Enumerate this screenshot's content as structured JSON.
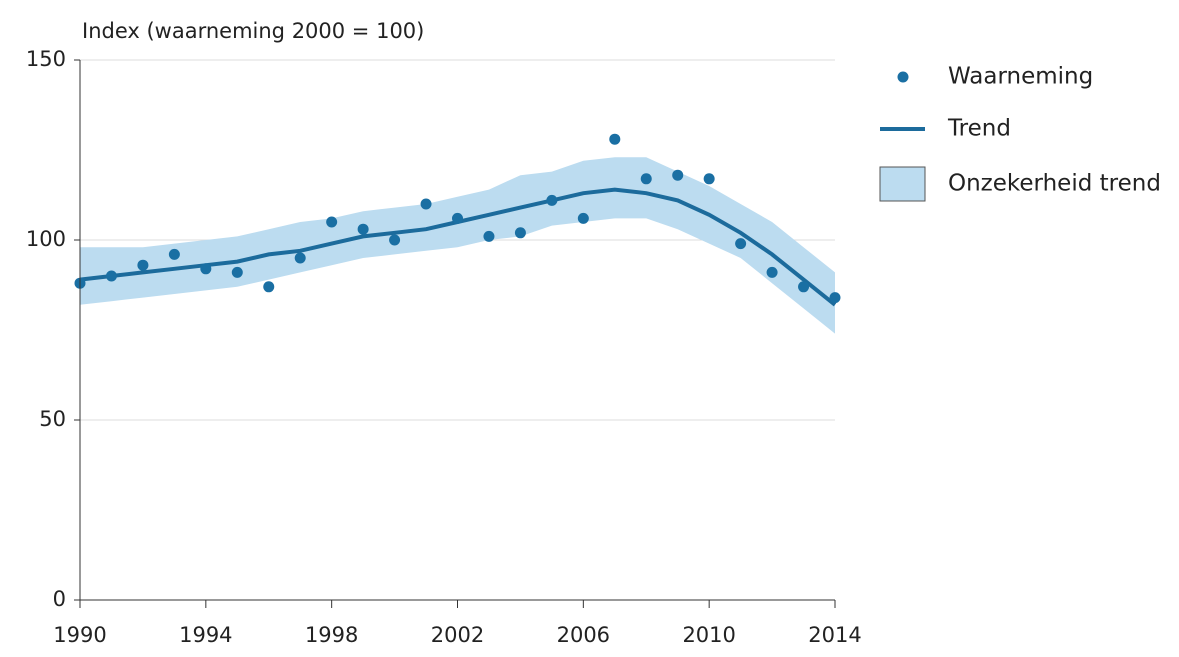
{
  "chart_data": {
    "type": "line",
    "ylabel": "Index (waarneming 2000 = 100)",
    "x": [
      1990,
      1991,
      1992,
      1993,
      1994,
      1995,
      1996,
      1997,
      1998,
      1999,
      2000,
      2001,
      2002,
      2003,
      2004,
      2005,
      2006,
      2007,
      2008,
      2009,
      2010,
      2011,
      2012,
      2013,
      2014
    ],
    "series": [
      {
        "name": "Waarneming",
        "kind": "scatter",
        "color": "#1a6fa3",
        "values": [
          88,
          90,
          93,
          96,
          92,
          91,
          87,
          95,
          105,
          103,
          100,
          110,
          106,
          101,
          102,
          111,
          106,
          128,
          117,
          118,
          117,
          99,
          91,
          87,
          84
        ]
      },
      {
        "name": "Trend",
        "kind": "line",
        "color": "#1c6b9c",
        "values": [
          89,
          90,
          91,
          92,
          93,
          94,
          96,
          97,
          99,
          101,
          102,
          103,
          105,
          107,
          109,
          111,
          113,
          114,
          113,
          111,
          107,
          102,
          96,
          89,
          82
        ]
      },
      {
        "name": "Onzekerheid trend",
        "kind": "band",
        "color": "#bcdcf0",
        "upper": [
          98,
          98,
          98,
          99,
          100,
          101,
          103,
          105,
          106,
          108,
          109,
          110,
          112,
          114,
          118,
          119,
          122,
          123,
          123,
          119,
          115,
          110,
          105,
          98,
          91
        ],
        "lower": [
          82,
          83,
          84,
          85,
          86,
          87,
          89,
          91,
          93,
          95,
          96,
          97,
          98,
          100,
          101,
          104,
          105,
          106,
          106,
          103,
          99,
          95,
          88,
          81,
          74
        ]
      }
    ],
    "xlim": [
      1990,
      2014
    ],
    "xticks": [
      1990,
      1994,
      1998,
      2002,
      2006,
      2010,
      2014
    ],
    "ylim": [
      0,
      150
    ],
    "yticks": [
      0,
      50,
      100,
      150
    ],
    "grid": true,
    "legend": "right"
  }
}
